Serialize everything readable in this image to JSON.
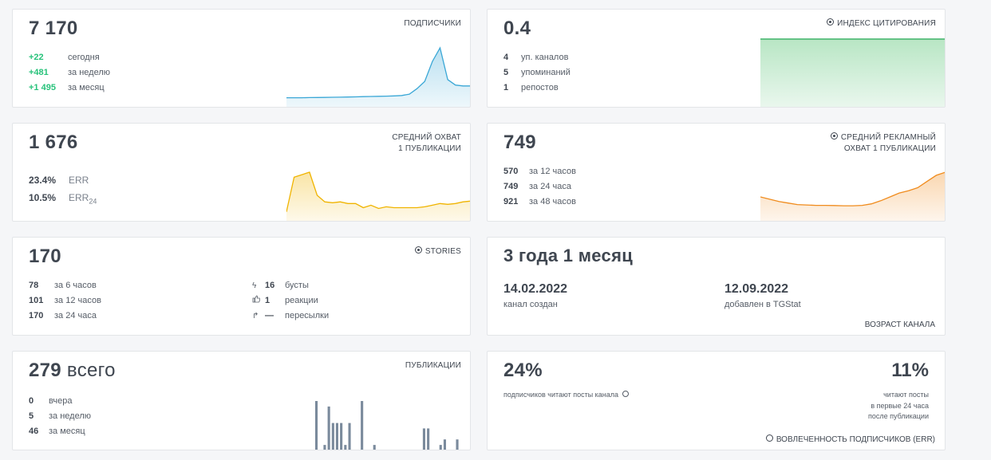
{
  "subscribers": {
    "value": "7 170",
    "label": "ПОДПИСЧИКИ",
    "rows": [
      {
        "value": "+22",
        "label": "сегодня"
      },
      {
        "value": "+481",
        "label": "за неделю"
      },
      {
        "value": "+1 495",
        "label": "за месяц"
      }
    ],
    "trend": [
      10,
      10,
      10,
      10.2,
      10.3,
      10.4,
      10.5,
      10.6,
      10.8,
      11,
      11.2,
      11.4,
      11.6,
      11.8,
      12,
      12.5,
      14,
      20,
      28,
      50,
      65,
      30,
      24,
      23,
      23
    ],
    "color": "#3aa7d6"
  },
  "citation": {
    "value": "0.4",
    "label": "ИНДЕКС ЦИТИРОВАНИЯ",
    "rows": [
      {
        "value": "4",
        "label": "уп. каналов"
      },
      {
        "value": "5",
        "label": "упоминаний"
      },
      {
        "value": "1",
        "label": "репостов"
      }
    ],
    "color": "#3fb468"
  },
  "reach": {
    "value": "1 676",
    "label_line1": "СРЕДНИЙ ОХВАТ",
    "label_line2": "1 ПУБЛИКАЦИИ",
    "err_value": "23.4%",
    "err_label": "ERR",
    "err24_value": "10.5%",
    "err24_label": "ERR",
    "err24_sub": "24",
    "trend": [
      10,
      52,
      55,
      58,
      30,
      22,
      21,
      22,
      20,
      20,
      15,
      18,
      14,
      16,
      15,
      15,
      15,
      15,
      16,
      18,
      20,
      19,
      20,
      22,
      23
    ],
    "color": "#f0b400"
  },
  "ad_reach": {
    "value": "749",
    "label_line1": "СРЕДНИЙ РЕКЛАМНЫЙ",
    "label_line2": "ОХВАТ 1 ПУБЛИКАЦИИ",
    "rows": [
      {
        "value": "570",
        "label": "за 12 часов"
      },
      {
        "value": "749",
        "label": "за 24 часа"
      },
      {
        "value": "921",
        "label": "за 48 часов"
      }
    ],
    "trend": [
      30,
      27,
      24,
      22,
      20,
      19.5,
      19,
      19,
      18.8,
      18.5,
      18.5,
      19,
      21,
      25,
      30,
      35,
      38,
      42,
      50,
      58,
      62
    ],
    "color": "#f08c1e"
  },
  "stories": {
    "value": "170",
    "label": "STORIES",
    "rows": [
      {
        "value": "78",
        "label": "за 6 часов"
      },
      {
        "value": "101",
        "label": "за 12 часов"
      },
      {
        "value": "170",
        "label": "за 24 часа"
      }
    ],
    "right_rows": [
      {
        "icon": "bolt-icon",
        "glyph": "ϟ",
        "value": "16",
        "label": "бусты"
      },
      {
        "icon": "thumbs-up-icon",
        "glyph": "👍",
        "value": "1",
        "label": "реакции"
      },
      {
        "icon": "forward-icon",
        "glyph": "↱",
        "value": "—",
        "label": "пересылки"
      }
    ]
  },
  "age": {
    "value": "3 года 1 месяц",
    "created_date": "14.02.2022",
    "created_label": "канал создан",
    "added_date": "12.09.2022",
    "added_label": "добавлен в TGStat",
    "label": "ВОЗРАСТ КАНАЛА"
  },
  "publications": {
    "value": "279",
    "value_suffix": "всего",
    "label": "ПУБЛИКАЦИИ",
    "rows": [
      {
        "value": "0",
        "label": "вчера"
      },
      {
        "value": "5",
        "label": "за неделю"
      },
      {
        "value": "46",
        "label": "за месяц"
      }
    ],
    "bars": [
      0,
      0,
      0,
      0,
      0,
      9,
      0,
      1,
      8,
      5,
      5,
      5,
      1,
      5,
      0,
      0,
      9,
      0,
      0,
      1,
      0,
      0,
      0,
      0,
      0,
      0,
      0,
      0,
      0,
      0,
      0,
      4,
      4,
      0,
      0,
      1,
      2,
      0,
      0,
      2,
      0,
      0
    ],
    "color": "#7a8a9c"
  },
  "engagement": {
    "left_value": "24%",
    "left_label": "подписчиков читают посты канала",
    "right_value": "11%",
    "right_line1": "читают посты",
    "right_line2": "в первые 24 часа",
    "right_line3": "после публикации",
    "label": "ВОВЛЕЧЕННОСТЬ ПОДПИСЧИКОВ (ERR)"
  }
}
